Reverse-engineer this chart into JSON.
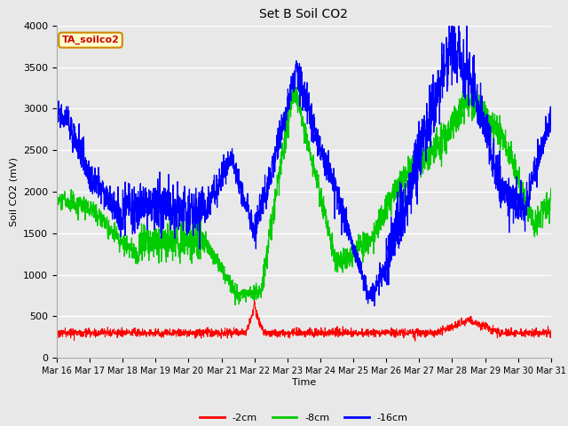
{
  "title": "Set B Soil CO2",
  "ylabel": "Soil CO2 (mV)",
  "xlabel": "Time",
  "ylim": [
    0,
    4000
  ],
  "background_color": "#e8e8e8",
  "legend_box_label": "TA_soilco2",
  "legend_box_color": "#ffffcc",
  "legend_box_border": "#cc8800",
  "legend_box_text_color": "#cc0000",
  "xtick_labels": [
    "Mar 16",
    "Mar 17",
    "Mar 18",
    "Mar 19",
    "Mar 20",
    "Mar 21",
    "Mar 22",
    "Mar 23",
    "Mar 24",
    "Mar 25",
    "Mar 26",
    "Mar 27",
    "Mar 28",
    "Mar 29",
    "Mar 30",
    "Mar 31"
  ],
  "ytick_values": [
    0,
    500,
    1000,
    1500,
    2000,
    2500,
    3000,
    3500,
    4000
  ],
  "line_red": "red",
  "line_green": "#00cc00",
  "line_blue": "blue"
}
